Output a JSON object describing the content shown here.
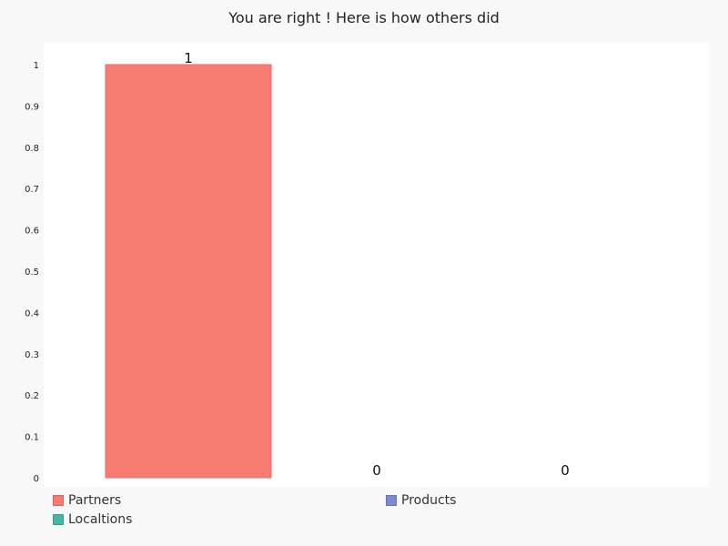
{
  "chart_data": {
    "type": "bar",
    "title": "You are right ! Here is how others did",
    "xlabel": "",
    "ylabel": "",
    "categories": [
      "Partners",
      "Products",
      "Localtions"
    ],
    "values": [
      1,
      0,
      0
    ],
    "data_labels": [
      "1",
      "0",
      "0"
    ],
    "y_ticks": [
      "0",
      "0.1",
      "0.2",
      "0.3",
      "0.4",
      "0.5",
      "0.6",
      "0.7",
      "0.8",
      "0.9",
      "1"
    ],
    "ylim": [
      0,
      1
    ],
    "grid": false,
    "legend_position": "bottom-left",
    "colors": [
      "#f67b70",
      "#7b88d6",
      "#48b5a9"
    ]
  }
}
